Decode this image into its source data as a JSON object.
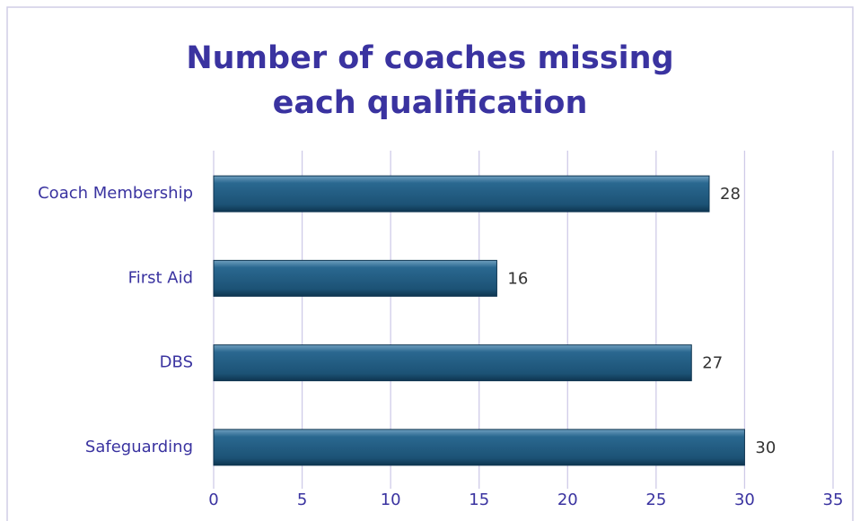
{
  "chart_data": {
    "type": "bar",
    "orientation": "horizontal",
    "title": "Number of coaches missing each qualification",
    "categories": [
      "Coach Membership",
      "First Aid",
      "DBS",
      "Safeguarding"
    ],
    "values": [
      28,
      16,
      27,
      30
    ],
    "color": "#1f5a80",
    "xlim": [
      0,
      35
    ],
    "xticks": [
      0,
      5,
      10,
      15,
      20,
      25,
      30,
      35
    ],
    "grid": true
  }
}
